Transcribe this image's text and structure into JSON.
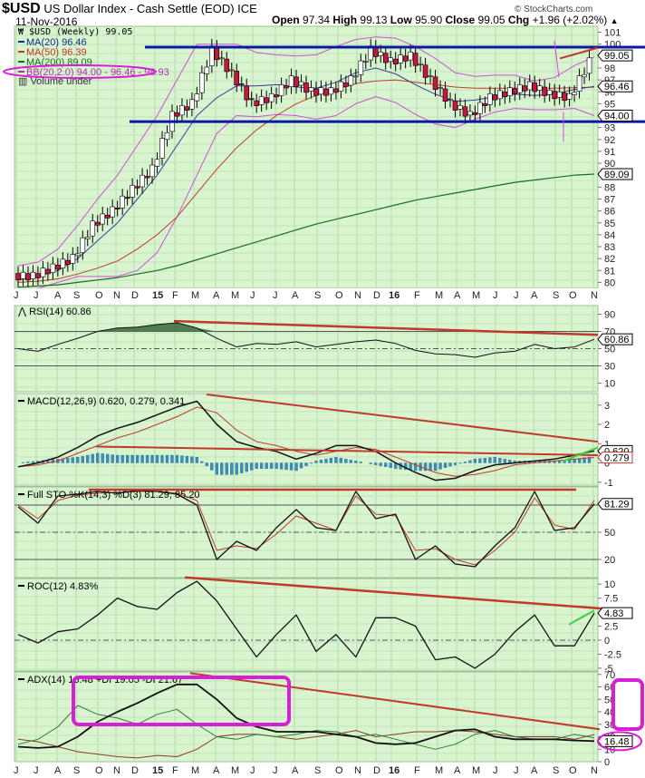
{
  "header": {
    "symbol": "$USD",
    "name": "US Dollar Index - Cash Settle (EOD)",
    "exchange": "ICE",
    "date": "11-Nov-2016",
    "copyright": "© StockCharts.com",
    "open_label": "Open",
    "open": "97.34",
    "high_label": "High",
    "high": "99.13",
    "low_label": "Low",
    "low": "95.90",
    "close_label": "Close",
    "close": "99.05",
    "chg_label": "Chg",
    "chg": "+1.96 (+2.02%)",
    "chg_icon": "up-triangle-icon"
  },
  "x_axis": {
    "labels": [
      "J",
      "J",
      "A",
      "S",
      "O",
      "N",
      "D",
      "15",
      "F",
      "M",
      "A",
      "M",
      "J",
      "J",
      "A",
      "S",
      "O",
      "N",
      "D",
      "16",
      "F",
      "M",
      "A",
      "M",
      "J",
      "J",
      "A",
      "S",
      "O",
      "N"
    ],
    "positions": [
      18,
      40,
      63,
      84,
      108,
      128,
      148,
      171,
      193,
      214,
      238,
      258,
      279,
      304,
      325,
      350,
      373,
      394,
      415,
      432,
      460,
      483,
      504,
      524,
      547,
      570,
      589,
      613,
      631,
      655
    ]
  },
  "chart_data": [
    {
      "type": "candlestick",
      "title": "$USD (Weekly) 99.05",
      "legend": [
        "$USD (Weekly) 99.05",
        "MA(20) 96.46",
        "MA(50) 96.39",
        "MA(200) 89.09",
        "BB(20,2.0) 94.00 - 96.46 - 98.93",
        "Volume under"
      ],
      "y_ticks": [
        101,
        100,
        99,
        98,
        97,
        96,
        95,
        94,
        93,
        92,
        91,
        90,
        89,
        88,
        87,
        86,
        85,
        84,
        83,
        82,
        81,
        80
      ],
      "ylim": [
        79.5,
        101.5
      ],
      "last_value_tags": [
        {
          "label": "99.05",
          "value": 99.05
        },
        {
          "label": "96.46",
          "value": 96.46
        },
        {
          "label": "94.00",
          "value": 94.0
        },
        {
          "label": "89.09",
          "value": 89.09
        }
      ],
      "annotations": [
        "resistance line ~99.8",
        "support line ~93.5",
        "magenta ellipse around BB legend",
        "pink arrows near Sep-Oct 2016"
      ],
      "series": [
        {
          "name": "close",
          "x": [
            "Jun14",
            "Jul14",
            "Aug14",
            "Sep14",
            "Oct14",
            "Nov14",
            "Dec14",
            "Jan15",
            "Feb15",
            "Mar15",
            "Apr15",
            "May15",
            "Jun15",
            "Jul15",
            "Aug15",
            "Sep15",
            "Oct15",
            "Nov15",
            "Dec15",
            "Jan16",
            "Feb16",
            "Mar16",
            "Apr16",
            "May16",
            "Jun16",
            "Jul16",
            "Aug16",
            "Sep16",
            "Oct16",
            "Nov16"
          ],
          "values": [
            80.5,
            81.2,
            82.0,
            84.8,
            86.0,
            87.8,
            89.5,
            94.0,
            95.0,
            99.5,
            97.5,
            95.0,
            95.5,
            97.0,
            96.0,
            96.0,
            97.0,
            99.5,
            98.5,
            99.0,
            97.0,
            95.0,
            94.0,
            95.5,
            96.0,
            96.5,
            95.8,
            95.5,
            98.5,
            99.05
          ]
        },
        {
          "name": "MA(20)",
          "values": [
            80.2,
            80.5,
            81.0,
            82.0,
            83.5,
            85.0,
            87.0,
            89.0,
            91.5,
            94.0,
            95.5,
            96.5,
            96.5,
            96.6,
            96.4,
            96.3,
            96.8,
            97.6,
            98.0,
            97.5,
            96.6,
            95.8,
            95.2,
            95.3,
            95.6,
            95.8,
            95.7,
            95.8,
            96.2,
            96.46
          ]
        },
        {
          "name": "MA(50)",
          "values": [
            80.0,
            80.1,
            80.3,
            80.7,
            81.2,
            81.8,
            82.8,
            84.0,
            85.5,
            87.5,
            89.5,
            91.3,
            92.8,
            94.0,
            95.0,
            95.7,
            96.2,
            96.7,
            96.9,
            97.0,
            96.8,
            96.6,
            96.4,
            96.3,
            96.3,
            96.3,
            96.3,
            96.3,
            96.35,
            96.39
          ]
        },
        {
          "name": "MA(200)",
          "values": [
            79.6,
            79.7,
            79.8,
            80.0,
            80.2,
            80.4,
            80.7,
            81.0,
            81.4,
            81.9,
            82.4,
            82.9,
            83.4,
            83.9,
            84.4,
            84.9,
            85.3,
            85.7,
            86.1,
            86.5,
            86.9,
            87.2,
            87.5,
            87.8,
            88.1,
            88.4,
            88.6,
            88.8,
            89.0,
            89.09
          ]
        }
      ]
    },
    {
      "type": "line",
      "title": "RSI(14) 60.86",
      "y_ticks": [
        90,
        70,
        50,
        30,
        10
      ],
      "ylim": [
        0,
        100
      ],
      "last_value_tags": [
        {
          "label": "60.86",
          "value": 60.86
        }
      ],
      "series": [
        {
          "name": "RSI(14)",
          "values": [
            50,
            47,
            55,
            62,
            70,
            74,
            75,
            78,
            80,
            74,
            62,
            52,
            56,
            55,
            58,
            52,
            55,
            58,
            60,
            56,
            48,
            44,
            43,
            40,
            45,
            47,
            55,
            50,
            52,
            60.86
          ]
        }
      ],
      "annotations": [
        "red declining trendline from ~82 to ~66"
      ]
    },
    {
      "type": "line",
      "title": "MACD(12,26,9) 0.620, 0.279, 0.341",
      "y_ticks": [
        3,
        2,
        1,
        0,
        -1
      ],
      "ylim": [
        -1.2,
        3.6
      ],
      "last_value_tags": [
        {
          "label": "0.620",
          "value": 0.62
        },
        {
          "label": "0.279",
          "value": 0.279
        }
      ],
      "series": [
        {
          "name": "MACD",
          "values": [
            -0.2,
            0.0,
            0.3,
            0.8,
            1.4,
            1.8,
            2.1,
            2.5,
            2.9,
            3.2,
            2.0,
            1.1,
            0.8,
            0.6,
            0.2,
            0.5,
            0.9,
            0.9,
            0.6,
            0.0,
            -0.5,
            -0.9,
            -0.8,
            -0.4,
            -0.1,
            0.0,
            0.1,
            0.2,
            0.4,
            0.62
          ]
        },
        {
          "name": "Signal",
          "values": [
            -0.2,
            -0.1,
            0.1,
            0.5,
            0.9,
            1.3,
            1.6,
            2.0,
            2.4,
            2.9,
            2.6,
            1.7,
            1.1,
            0.9,
            0.6,
            0.4,
            0.6,
            0.8,
            0.7,
            0.3,
            -0.1,
            -0.5,
            -0.7,
            -0.6,
            -0.4,
            -0.1,
            0.0,
            0.1,
            0.2,
            0.279
          ]
        },
        {
          "name": "Histogram",
          "values": [
            0.0,
            0.1,
            0.2,
            0.3,
            0.5,
            0.4,
            0.4,
            0.4,
            0.4,
            0.3,
            -0.6,
            -0.6,
            -0.3,
            -0.3,
            -0.4,
            0.1,
            0.3,
            0.1,
            -0.1,
            -0.3,
            -0.4,
            -0.4,
            -0.1,
            0.2,
            0.3,
            0.1,
            0.1,
            0.1,
            0.2,
            0.341
          ]
        }
      ]
    },
    {
      "type": "line",
      "title": "Full STO %K(14,3) %D(3) 81.29, 85.20",
      "y_ticks": [
        50,
        20
      ],
      "ylim": [
        0,
        100
      ],
      "last_value_tags": [
        {
          "label": "81.29",
          "value": 81.29
        }
      ],
      "series": [
        {
          "name": "%K",
          "values": [
            78,
            60,
            90,
            92,
            95,
            93,
            96,
            95,
            92,
            80,
            20,
            40,
            30,
            55,
            75,
            55,
            52,
            95,
            65,
            70,
            20,
            35,
            15,
            12,
            35,
            55,
            95,
            52,
            55,
            81.29
          ]
        },
        {
          "name": "%D",
          "values": [
            80,
            65,
            85,
            91,
            93,
            94,
            95,
            95,
            93,
            85,
            30,
            35,
            32,
            48,
            68,
            60,
            52,
            90,
            70,
            68,
            30,
            32,
            20,
            14,
            30,
            50,
            88,
            58,
            53,
            85.2
          ]
        }
      ]
    },
    {
      "type": "line",
      "title": "ROC(12) 4.83%",
      "y_ticks": [
        10.0,
        7.5,
        5.0,
        2.5,
        0.0,
        -2.5,
        -5.0
      ],
      "ylim": [
        -5.5,
        11
      ],
      "last_value_tags": [
        {
          "label": "4.83",
          "value": 4.83
        }
      ],
      "series": [
        {
          "name": "ROC(12)",
          "values": [
            1.0,
            -0.5,
            1.5,
            2.0,
            4.5,
            7.5,
            6.0,
            5.5,
            8.5,
            10.5,
            7.0,
            2.0,
            -3.0,
            1.0,
            4.5,
            -2.0,
            1.0,
            -3.0,
            4.0,
            4.0,
            2.5,
            -3.5,
            -3.0,
            -5.0,
            -2.5,
            1.5,
            4.5,
            -1.0,
            -1.0,
            4.83
          ]
        }
      ]
    },
    {
      "type": "line",
      "title": "ADX(14) 16.48 +DI 19.05 -DI 21.67",
      "y_ticks": [
        70,
        60,
        50,
        40,
        30,
        20,
        10,
        0
      ],
      "ylim": [
        0,
        72
      ],
      "last_value_tags": [
        {
          "label": "16.48",
          "value": 16.48
        }
      ],
      "series": [
        {
          "name": "ADX",
          "values": [
            12,
            11,
            12,
            20,
            32,
            40,
            47,
            55,
            62,
            62,
            50,
            35,
            28,
            24,
            24,
            24,
            22,
            20,
            15,
            14,
            15,
            20,
            25,
            26,
            20,
            18,
            18,
            18,
            17,
            16.48
          ]
        },
        {
          "name": "+DI",
          "values": [
            14,
            18,
            28,
            45,
            38,
            35,
            30,
            38,
            42,
            30,
            20,
            18,
            22,
            20,
            22,
            25,
            24,
            20,
            22,
            18,
            14,
            10,
            14,
            22,
            25,
            20,
            18,
            18,
            22,
            19.05
          ]
        },
        {
          "name": "-DI",
          "values": [
            18,
            16,
            12,
            8,
            6,
            4,
            3,
            5,
            4,
            10,
            20,
            22,
            22,
            20,
            18,
            20,
            22,
            25,
            20,
            22,
            24,
            24,
            25,
            24,
            22,
            20,
            20,
            20,
            18,
            21.67
          ]
        }
      ],
      "annotations": [
        "magenta rectangle highlighting ADX peak Oct14-Jul15",
        "magenta rectangle to the right of axis",
        "magenta ellipse around 16.48 tag"
      ]
    }
  ]
}
